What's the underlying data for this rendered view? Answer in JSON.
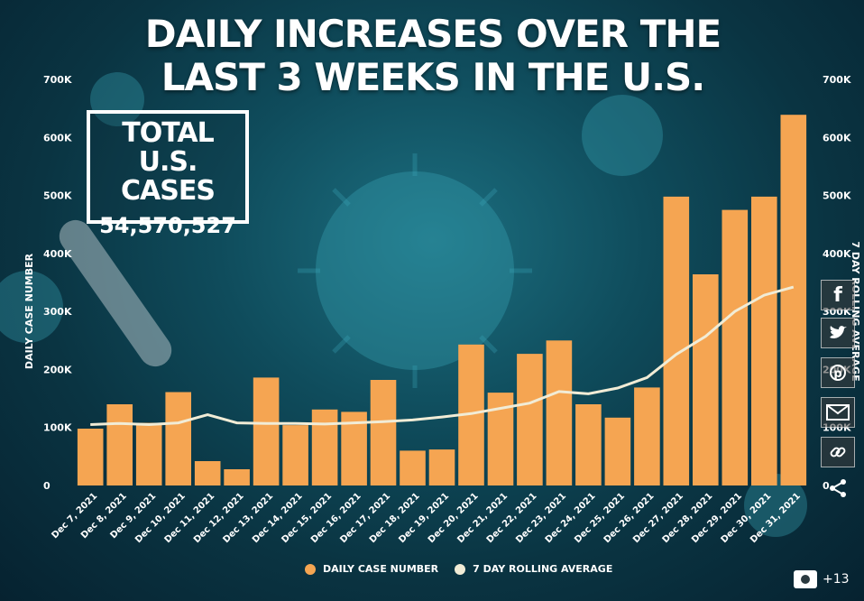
{
  "title": "DAILY INCREASES OVER THE LAST 3 WEEKS IN THE U.S.",
  "total_box": {
    "label": "TOTAL U.S. CASES",
    "value": "54,570,527"
  },
  "legend": {
    "daily": "DAILY CASE NUMBER",
    "rolling": "7 DAY ROLLING AVERAGE"
  },
  "photo_count": "+13",
  "colors": {
    "bar": "#f5a552",
    "line": "#f1ecd6",
    "background": "#0f4c5c",
    "text": "#ffffff"
  },
  "chart_data": {
    "type": "bar",
    "categories": [
      "Dec 7, 2021",
      "Dec 8, 2021",
      "Dec 9, 2021",
      "Dec 10, 2021",
      "Dec 11, 2021",
      "Dec 12, 2021",
      "Dec 13, 2021",
      "Dec 14, 2021",
      "Dec 15, 2021",
      "Dec 16, 2021",
      "Dec 17, 2021",
      "Dec 18, 2021",
      "Dec 19, 2021",
      "Dec 20, 2021",
      "Dec 21, 2021",
      "Dec 22, 2021",
      "Dec 23, 2021",
      "Dec 24, 2021",
      "Dec 25, 2021",
      "Dec 26, 2021",
      "Dec 27, 2021",
      "Dec 28, 2021",
      "Dec 29, 2021",
      "Dec 30, 2021",
      "Dec 31, 2021"
    ],
    "series": [
      {
        "name": "DAILY CASE NUMBER",
        "type": "bar",
        "values": [
          98000,
          140000,
          108000,
          161000,
          42000,
          28000,
          186000,
          104000,
          131000,
          127000,
          182000,
          60000,
          62000,
          243000,
          160000,
          227000,
          250000,
          140000,
          117000,
          169000,
          498000,
          364000,
          475000,
          498000,
          639000
        ]
      },
      {
        "name": "7 DAY ROLLING AVERAGE",
        "type": "line",
        "values": [
          105000,
          107000,
          105000,
          108000,
          122000,
          108000,
          107000,
          107000,
          106000,
          108000,
          110000,
          113000,
          118000,
          124000,
          133000,
          142000,
          162000,
          158000,
          168000,
          186000,
          226000,
          257000,
          300000,
          328000,
          342000
        ]
      }
    ],
    "ylabel": "DAILY CASE NUMBER",
    "ylabel_right": "7 DAY ROLLING AVERAGE",
    "ylim": [
      0,
      700000
    ],
    "yticks": [
      "0",
      "100K",
      "200K",
      "300K",
      "400K",
      "500K",
      "600K",
      "700K"
    ],
    "grid": false,
    "legend_position": "bottom"
  }
}
